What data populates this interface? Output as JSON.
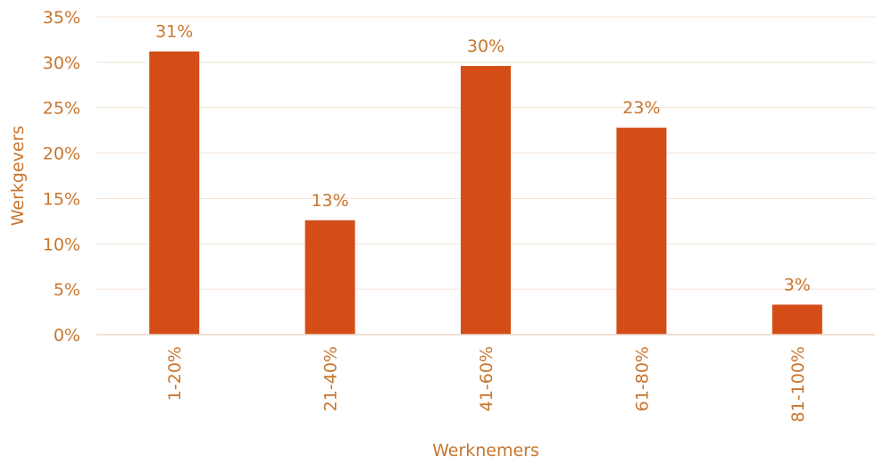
{
  "colors": {
    "bar": "#D44D17",
    "text": "#C8762E",
    "grid": "#F3E3D6",
    "axis": "#EBD6C5"
  },
  "chart_data": {
    "type": "bar",
    "categories": [
      "1-20%",
      "21-40%",
      "41-60%",
      "61-80%",
      "81-100%"
    ],
    "values": [
      31.2,
      12.6,
      29.6,
      22.8,
      3.3
    ],
    "data_labels": [
      "31%",
      "13%",
      "30%",
      "23%",
      "3%"
    ],
    "xlabel": "Werknemers",
    "ylabel": "Werkgevers",
    "ylim": [
      0,
      35
    ],
    "yticks": [
      0,
      5,
      10,
      15,
      20,
      25,
      30,
      35
    ],
    "ytick_labels": [
      "0%",
      "5%",
      "10%",
      "15%",
      "20%",
      "25%",
      "30%",
      "35%"
    ],
    "grid": true,
    "legend": "none"
  }
}
